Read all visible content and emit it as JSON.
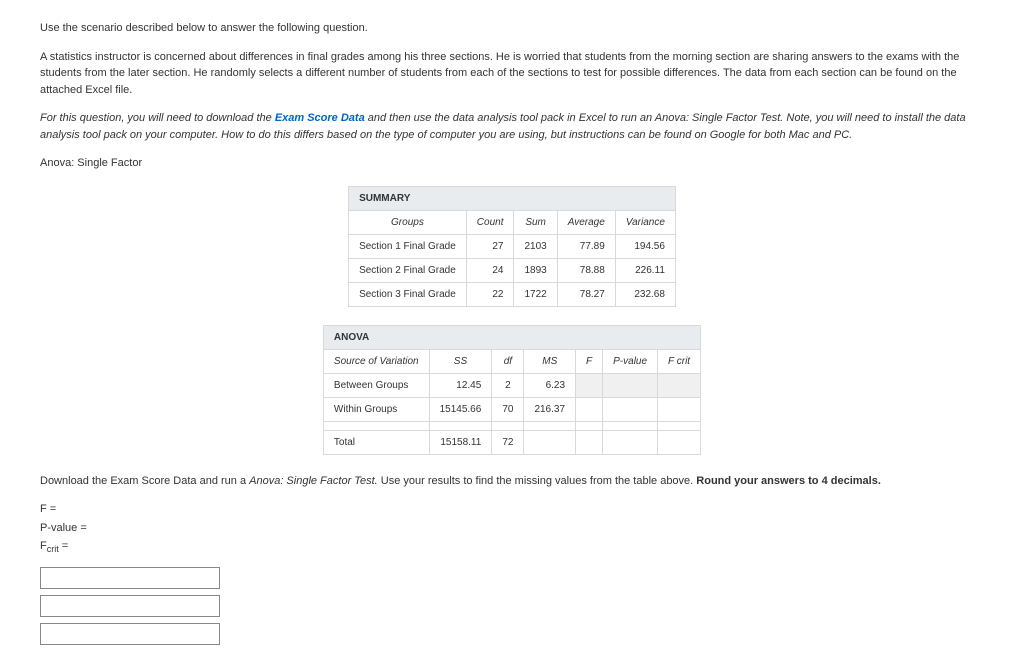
{
  "intro": {
    "line1": "Use the scenario described below to answer the following question.",
    "line2": "A statistics instructor is concerned about differences in final grades among his three sections. He is worried that students from the morning section are sharing answers to the exams with the students from the later section. He randomly selects a different number of students from each of the sections to test for possible differences. The data from each section can be found on the attached Excel file.",
    "line3a": "For this question, you will need to download the ",
    "line3link": "Exam Score Data",
    "line3b": " and then use the data analysis tool pack in Excel to run an Anova: Single Factor Test. Note, you will need to install the data analysis tool pack on your computer. How to do this differs based on the type of computer you are using, but instructions can be found on Google for both Mac and PC."
  },
  "anova_label": "Anova: Single Factor",
  "summary_table": {
    "header": "SUMMARY",
    "cols": {
      "groups": "Groups",
      "count": "Count",
      "sum": "Sum",
      "average": "Average",
      "variance": "Variance"
    },
    "rows": [
      {
        "g": "Section 1 Final Grade",
        "c": "27",
        "s": "2103",
        "a": "77.89",
        "v": "194.56"
      },
      {
        "g": "Section 2 Final Grade",
        "c": "24",
        "s": "1893",
        "a": "78.88",
        "v": "226.11"
      },
      {
        "g": "Section 3 Final Grade",
        "c": "22",
        "s": "1722",
        "a": "78.27",
        "v": "232.68"
      }
    ]
  },
  "anova_table": {
    "header": "ANOVA",
    "cols": {
      "src": "Source of Variation",
      "ss": "SS",
      "df": "df",
      "ms": "MS",
      "f": "F",
      "p": "P-value",
      "fc": "F crit"
    },
    "rows": {
      "between": {
        "src": "Between Groups",
        "ss": "12.45",
        "df": "2",
        "ms": "6.23"
      },
      "within": {
        "src": "Within Groups",
        "ss": "15145.66",
        "df": "70",
        "ms": "216.37"
      },
      "total": {
        "src": "Total",
        "ss": "15158.11",
        "df": "72"
      }
    }
  },
  "instruction": {
    "a": "Download the Exam Score Data and run a ",
    "b": "Anova: Single Factor Test.",
    "c": " Use your results to find the missing values from the table above. ",
    "d": "Round your answers to 4 decimals."
  },
  "answers": {
    "f": "F =",
    "p": "P-value =",
    "fc_pre": "F",
    "fc_sub": "crit",
    "fc_post": " ="
  },
  "inputs": {
    "ph": ""
  }
}
